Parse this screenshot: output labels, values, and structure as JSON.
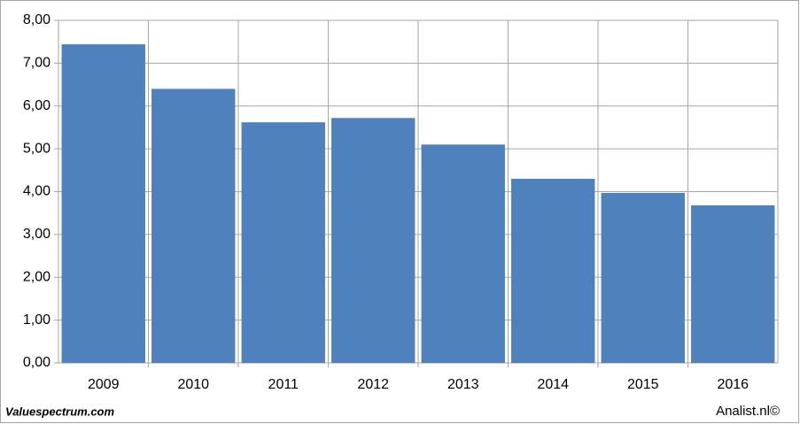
{
  "chart_data": {
    "type": "bar",
    "categories": [
      "2009",
      "2010",
      "2011",
      "2012",
      "2013",
      "2014",
      "2015",
      "2016"
    ],
    "values": [
      7.44,
      6.4,
      5.62,
      5.72,
      5.1,
      4.3,
      3.97,
      3.68
    ],
    "color": "#4f81bd",
    "ylim": [
      0,
      8
    ],
    "yticks": [
      {
        "value": 0,
        "label": "0,00"
      },
      {
        "value": 1,
        "label": "1,00"
      },
      {
        "value": 2,
        "label": "2,00"
      },
      {
        "value": 3,
        "label": "3,00"
      },
      {
        "value": 4,
        "label": "4,00"
      },
      {
        "value": 5,
        "label": "5,00"
      },
      {
        "value": 6,
        "label": "6,00"
      },
      {
        "value": 7,
        "label": "7,00"
      },
      {
        "value": 8,
        "label": "8,00"
      }
    ],
    "grid": true,
    "source_left": "Valuespectrum.com",
    "source_right": "Analist.nl©"
  }
}
